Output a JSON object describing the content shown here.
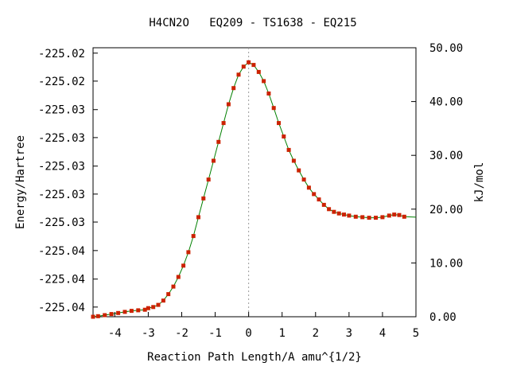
{
  "chart_data": {
    "type": "line",
    "title": "H4CN2O   EQ209 - TS1638 - EQ215",
    "xlabel": "Reaction Path Length/A amu^{1/2}",
    "ylabel": "Energy/Hartree",
    "y2label": "kJ/mol",
    "xlim": [
      -4.65,
      5.0
    ],
    "y2lim": [
      0,
      50
    ],
    "x_ticks": [
      "-4",
      "-3",
      "-2",
      "-1",
      "0",
      "1",
      "2",
      "3",
      "4",
      "5"
    ],
    "x_tick_values": [
      -4,
      -3,
      -2,
      -1,
      0,
      1,
      2,
      3,
      4,
      5
    ],
    "y_left_ticks": [
      "-225.02",
      "-225.02",
      "-225.03",
      "-225.03",
      "-225.03",
      "-225.03",
      "-225.03",
      "-225.04",
      "-225.04",
      "-225.04"
    ],
    "y_left_tick_values_kj": [
      49.0,
      43.8,
      38.5,
      33.3,
      28.0,
      22.8,
      17.6,
      12.3,
      7.0,
      1.8
    ],
    "y_right_ticks": [
      "0.00",
      "10.00",
      "20.00",
      "30.00",
      "40.00",
      "50.00"
    ],
    "y_right_tick_values": [
      0,
      10,
      20,
      30,
      40,
      50
    ],
    "ts_marker_x": 0,
    "grid": false,
    "series": [
      {
        "color": "#008000",
        "marker_color": "#cc2200",
        "x": [
          -4.65,
          -4.5,
          -4.3,
          -4.1,
          -3.9,
          -3.7,
          -3.5,
          -3.3,
          -3.1,
          -3.0,
          -2.85,
          -2.7,
          -2.55,
          -2.4,
          -2.25,
          -2.1,
          -1.95,
          -1.8,
          -1.65,
          -1.5,
          -1.35,
          -1.2,
          -1.05,
          -0.9,
          -0.75,
          -0.6,
          -0.45,
          -0.3,
          -0.15,
          0.0,
          0.15,
          0.3,
          0.45,
          0.6,
          0.75,
          0.9,
          1.05,
          1.2,
          1.35,
          1.5,
          1.65,
          1.8,
          1.95,
          2.1,
          2.25,
          2.4,
          2.55,
          2.7,
          2.85,
          3.0,
          3.2,
          3.4,
          3.6,
          3.8,
          4.0,
          4.2,
          4.35,
          4.5,
          4.65,
          5.0
        ],
        "y": [
          0.0,
          0.1,
          0.3,
          0.5,
          0.7,
          0.9,
          1.1,
          1.2,
          1.3,
          1.6,
          1.8,
          2.2,
          3.0,
          4.2,
          5.6,
          7.4,
          9.5,
          12.0,
          15.0,
          18.5,
          22.0,
          25.5,
          29.0,
          32.5,
          36.0,
          39.5,
          42.5,
          45.0,
          46.5,
          47.3,
          46.8,
          45.5,
          43.8,
          41.5,
          38.8,
          36.0,
          33.5,
          31.0,
          29.0,
          27.2,
          25.5,
          24.0,
          22.8,
          21.8,
          20.8,
          20.0,
          19.5,
          19.2,
          19.0,
          18.8,
          18.6,
          18.5,
          18.4,
          18.4,
          18.5,
          18.8,
          19.0,
          18.9,
          18.6,
          18.5
        ]
      }
    ]
  }
}
